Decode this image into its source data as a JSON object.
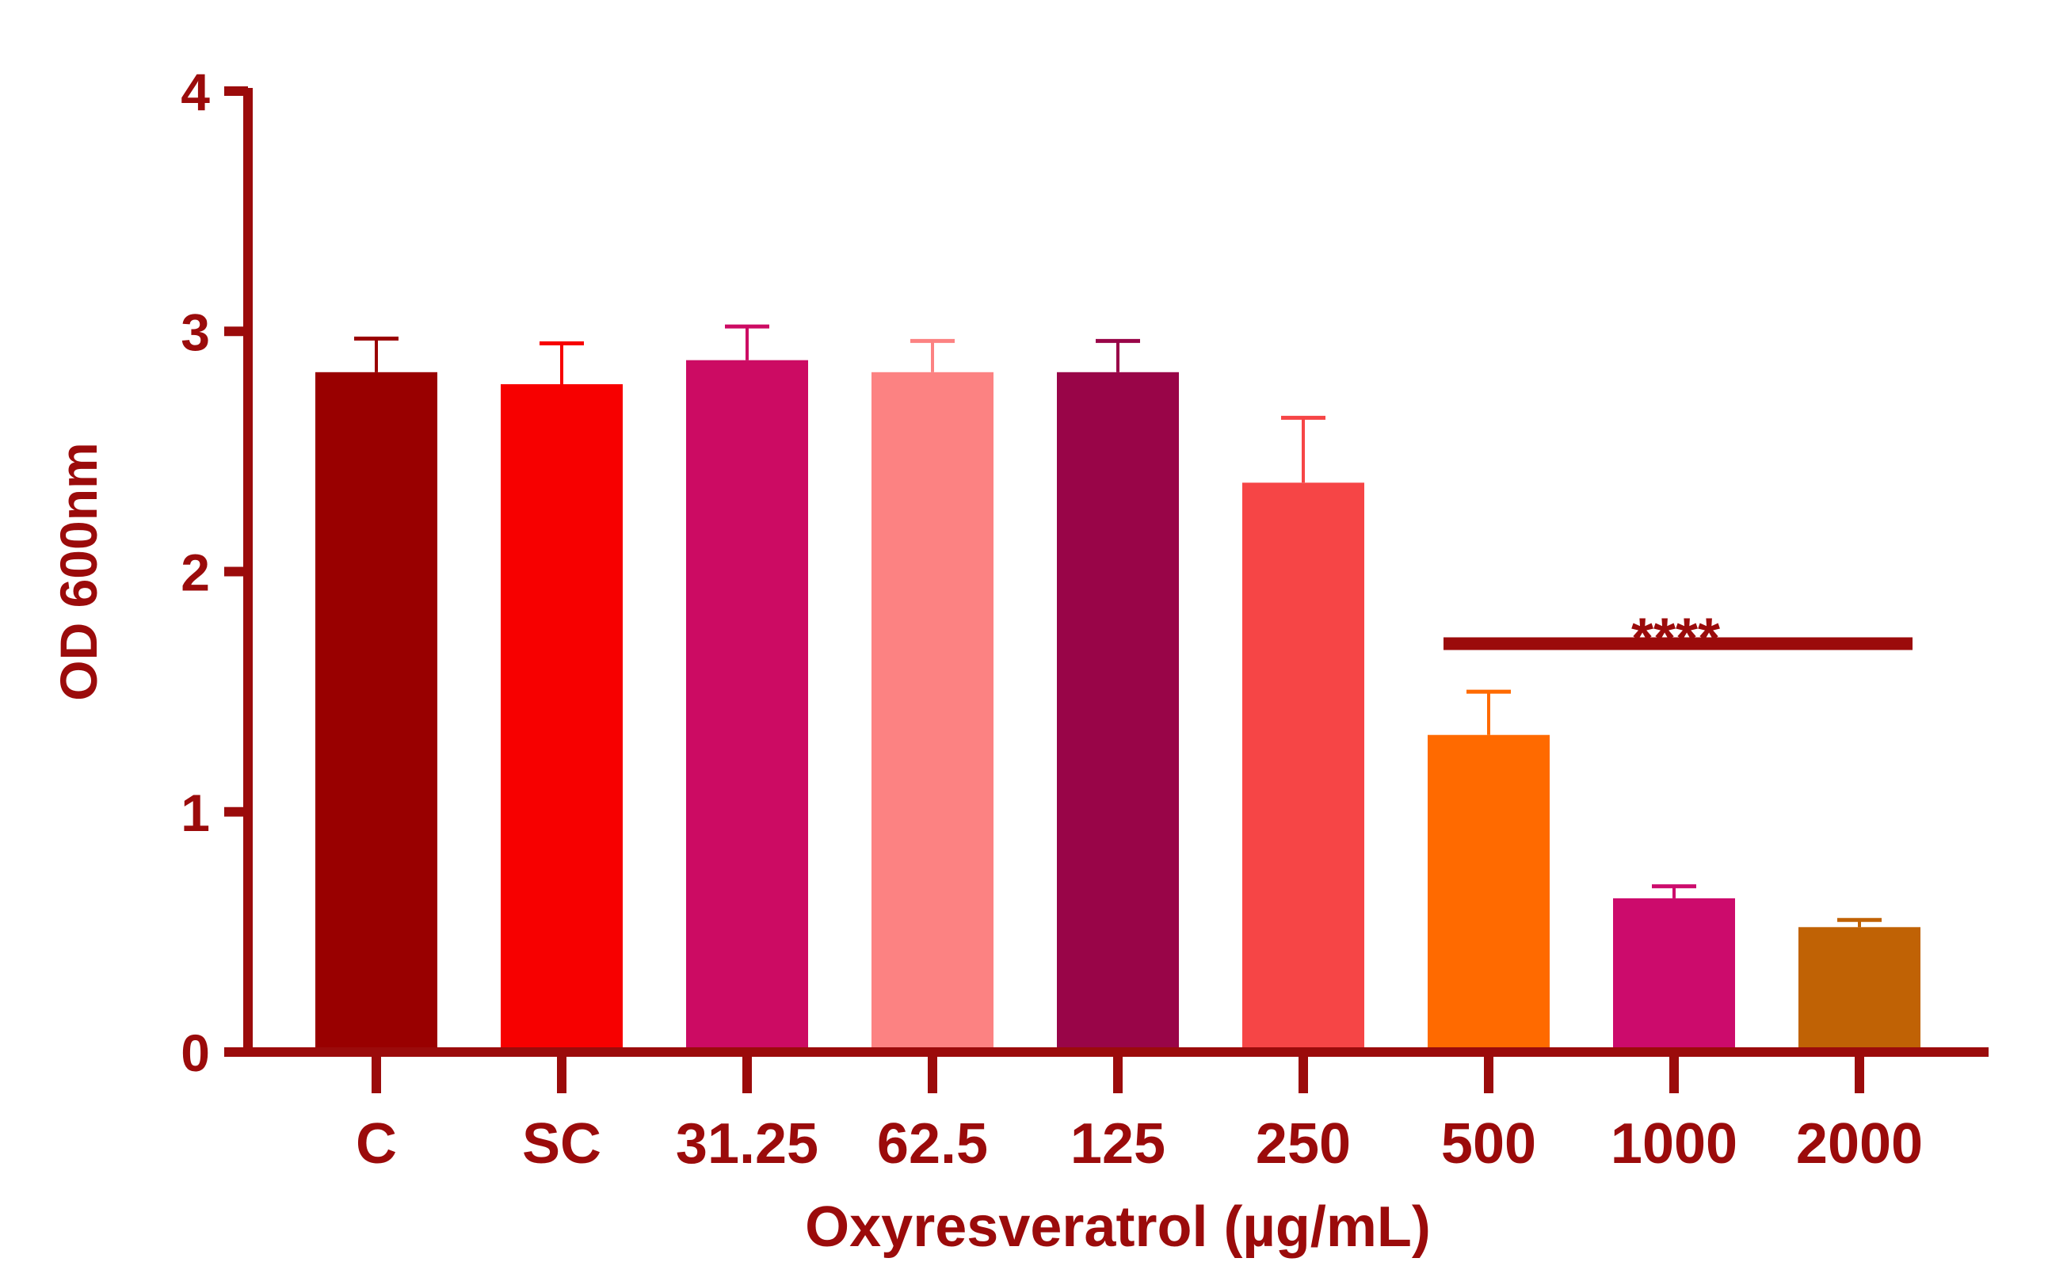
{
  "colors": {
    "axis": "#9b0b0b",
    "text": "#9b0b0b"
  },
  "chart_data": {
    "type": "bar",
    "title": "",
    "xlabel": "Oxyresveratrol (µg/mL)",
    "ylabel": "OD 600nm",
    "ylim": [
      0,
      4
    ],
    "yticks": [
      "0",
      "1",
      "2",
      "3",
      "4"
    ],
    "grid": false,
    "categories": [
      "C",
      "SC",
      "31.25",
      "62.5",
      "125",
      "250",
      "500",
      "1000",
      "2000"
    ],
    "values": [
      2.83,
      2.78,
      2.88,
      2.83,
      2.83,
      2.37,
      1.32,
      0.64,
      0.52
    ],
    "errors": [
      0.14,
      0.17,
      0.14,
      0.13,
      0.13,
      0.27,
      0.18,
      0.05,
      0.03
    ],
    "bar_colors": [
      "#990000",
      "#f70000",
      "#cc0b63",
      "#fc8282",
      "#990548",
      "#f64546",
      "#ff6a00",
      "#cc0b6c",
      "#c06205"
    ],
    "significance": {
      "label": "****",
      "from_category": "500",
      "to_category": "2000",
      "y": 1.7
    }
  }
}
